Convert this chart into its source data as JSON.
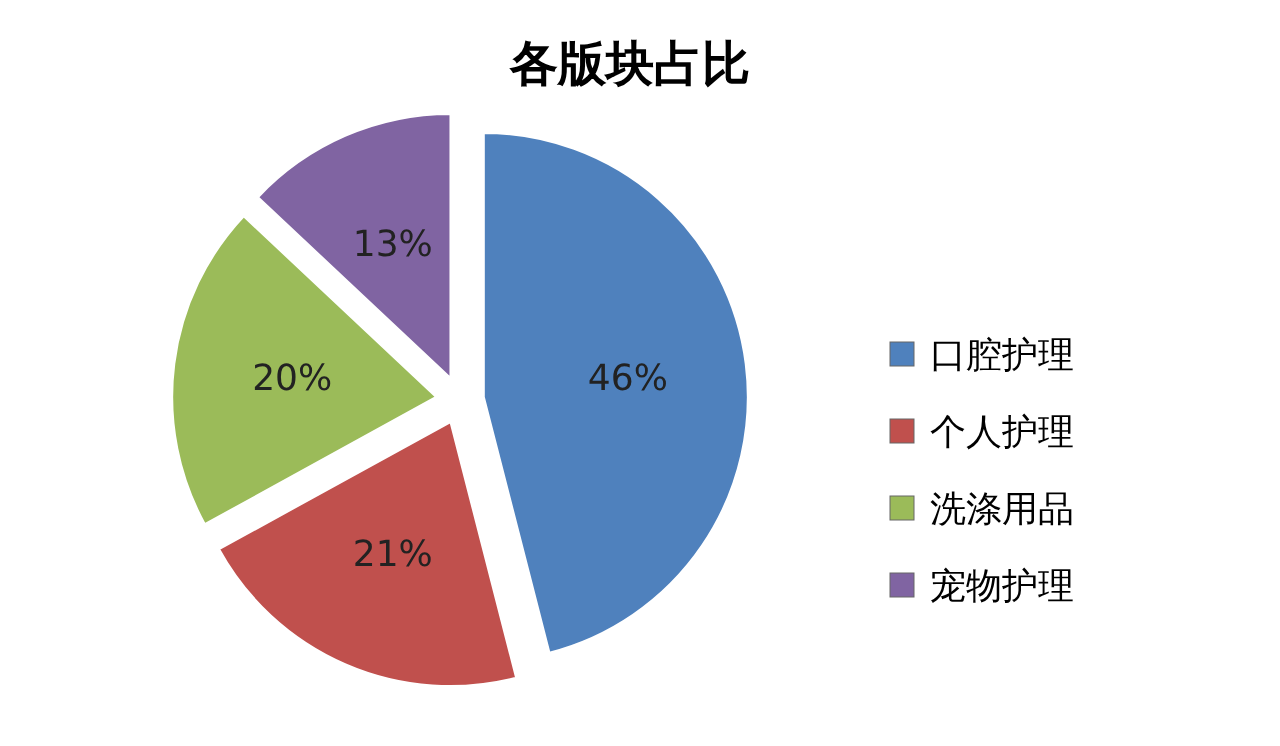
{
  "chart_data": {
    "type": "pie",
    "title": "各版块占比",
    "categories": [
      "口腔护理",
      "个人护理",
      "洗涤用品",
      "宠物护理"
    ],
    "values": [
      46,
      21,
      20,
      13
    ],
    "value_labels": [
      "46%",
      "21%",
      "20%",
      "13%"
    ],
    "colors": [
      "#4f81bd",
      "#c0504d",
      "#9bbb59",
      "#8064a2"
    ],
    "legend": "right"
  }
}
